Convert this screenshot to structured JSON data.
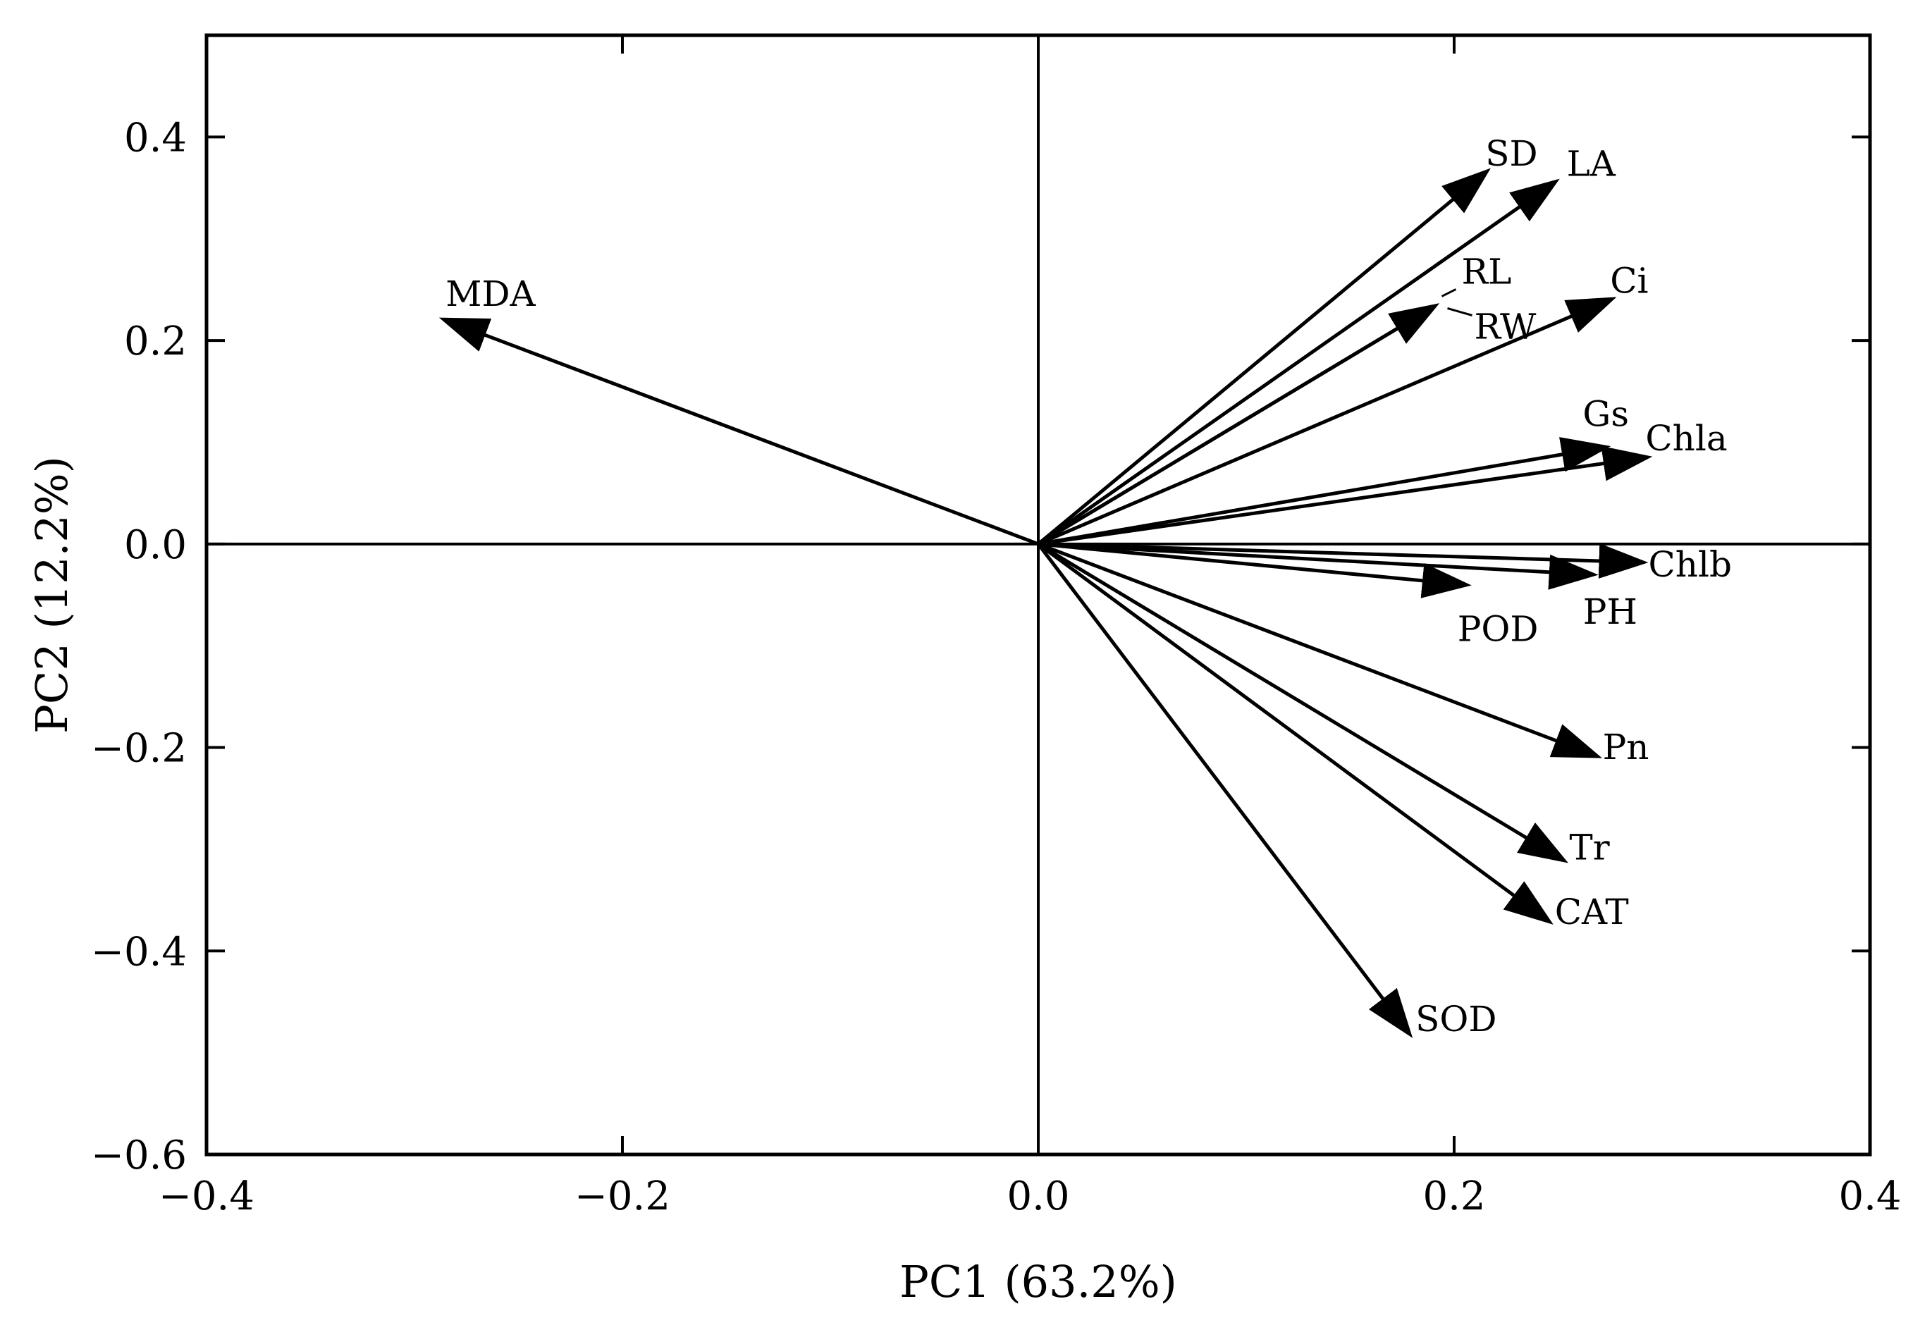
{
  "chart_data": {
    "type": "biplot",
    "title": "",
    "xlabel": "PC1 (63.2%)",
    "ylabel": "PC2 (12.2%)",
    "xlim": [
      -0.4,
      0.4
    ],
    "ylim": [
      -0.6,
      0.5
    ],
    "xticks": [
      -0.4,
      -0.2,
      0.0,
      0.2,
      0.4
    ],
    "xtick_labels": [
      "−0.4",
      "−0.2",
      "0.0",
      "0.2",
      "0.4"
    ],
    "yticks": [
      -0.6,
      -0.4,
      -0.2,
      0.0,
      0.2,
      0.4
    ],
    "ytick_labels": [
      "−0.6",
      "−0.4",
      "−0.2",
      "0.0",
      "0.2",
      "0.4"
    ],
    "grid": false,
    "reference_lines": {
      "x": 0,
      "y": 0
    },
    "vectors": [
      {
        "name": "MDA",
        "x": -0.285,
        "y": 0.22
      },
      {
        "name": "SD",
        "x": 0.215,
        "y": 0.365
      },
      {
        "name": "LA",
        "x": 0.248,
        "y": 0.355
      },
      {
        "name": "RL",
        "x": 0.19,
        "y": 0.233
      },
      {
        "name": "RW",
        "x": 0.19,
        "y": 0.233
      },
      {
        "name": "Ci",
        "x": 0.275,
        "y": 0.24
      },
      {
        "name": "Gs",
        "x": 0.272,
        "y": 0.095
      },
      {
        "name": "Chla",
        "x": 0.292,
        "y": 0.085
      },
      {
        "name": "Chlb",
        "x": 0.29,
        "y": -0.018
      },
      {
        "name": "PH",
        "x": 0.266,
        "y": -0.03
      },
      {
        "name": "POD",
        "x": 0.205,
        "y": -0.04
      },
      {
        "name": "Pn",
        "x": 0.268,
        "y": -0.208
      },
      {
        "name": "Tr",
        "x": 0.252,
        "y": -0.31
      },
      {
        "name": "CAT",
        "x": 0.245,
        "y": -0.37
      },
      {
        "name": "SOD",
        "x": 0.178,
        "y": -0.48
      }
    ]
  }
}
